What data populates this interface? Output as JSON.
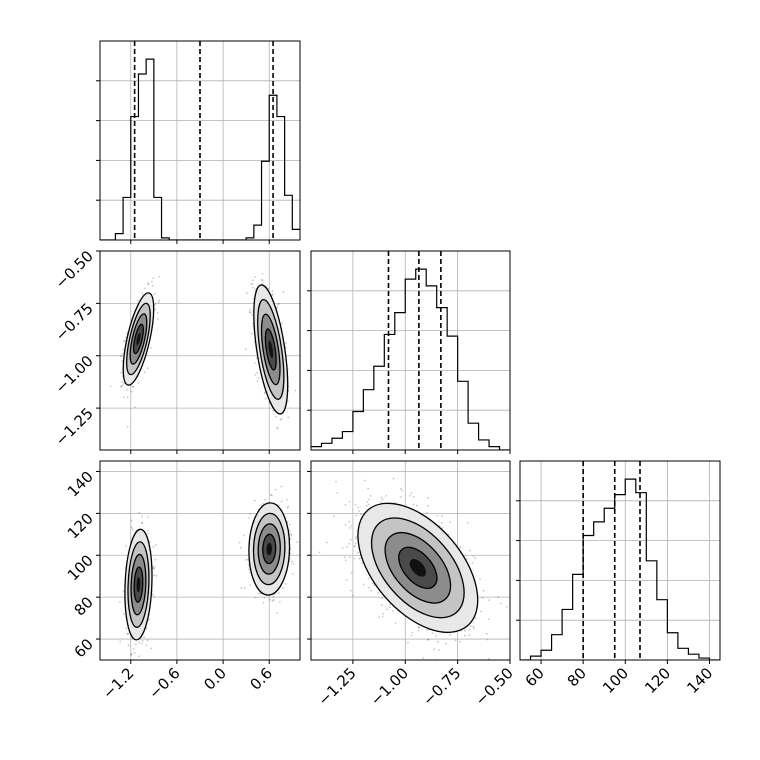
{
  "chart_data": {
    "type": "corner",
    "grid": true,
    "parameters": [
      "",
      "",
      ""
    ],
    "axes": {
      "p0": {
        "range": [
          -1.6,
          1.0
        ],
        "ticks": [
          "-1.2",
          "-0.6",
          "0.0",
          "0.6"
        ],
        "tick_values": [
          -1.2,
          -0.6,
          0.0,
          0.6
        ]
      },
      "p1": {
        "range": [
          -1.45,
          -0.5
        ],
        "ticks": [
          "-1.25",
          "-1.00",
          "-0.75",
          "-0.50"
        ],
        "tick_values": [
          -1.25,
          -1.0,
          -0.75,
          -0.5
        ]
      },
      "p2": {
        "range": [
          50,
          145
        ],
        "ticks": [
          "60",
          "80",
          "100",
          "120",
          "140"
        ],
        "tick_values": [
          60,
          80,
          100,
          120,
          140
        ]
      }
    },
    "histograms": [
      {
        "param": "p0",
        "bin_edges": [
          -1.6,
          -1.5,
          -1.4,
          -1.3,
          -1.2,
          -1.1,
          -1.0,
          -0.9,
          -0.8,
          -0.7,
          -0.6,
          -0.5,
          -0.4,
          -0.3,
          -0.2,
          -0.1,
          0.0,
          0.1,
          0.2,
          0.3,
          0.4,
          0.5,
          0.6,
          0.7,
          0.8,
          0.9,
          1.0
        ],
        "counts": [
          0,
          0,
          3,
          20,
          58,
          78,
          85,
          20,
          1,
          0,
          0,
          0,
          0,
          0,
          0,
          0,
          0,
          0,
          0,
          1,
          7,
          37,
          68,
          58,
          21,
          5
        ],
        "quantiles": [
          -1.15,
          -0.3,
          0.65
        ]
      },
      {
        "param": "p1",
        "bin_edges": [
          -1.45,
          -1.4,
          -1.35,
          -1.3,
          -1.25,
          -1.2,
          -1.15,
          -1.1,
          -1.05,
          -1.0,
          -0.95,
          -0.9,
          -0.85,
          -0.8,
          -0.75,
          -0.7,
          -0.65,
          -0.6,
          -0.55,
          -0.5
        ],
        "counts": [
          2,
          4,
          7,
          11,
          23,
          36,
          50,
          69,
          82,
          102,
          108,
          98,
          85,
          68,
          41,
          16,
          6,
          2,
          0
        ],
        "quantiles": [
          -1.08,
          -0.935,
          -0.83
        ]
      },
      {
        "param": "p2",
        "bin_edges": [
          50,
          55,
          60,
          65,
          70,
          75,
          80,
          85,
          90,
          95,
          100,
          105,
          110,
          115,
          120,
          125,
          130,
          135,
          140,
          145
        ],
        "counts": [
          0,
          2,
          5,
          13,
          26,
          44,
          64,
          71,
          78,
          85,
          93,
          86,
          51,
          31,
          14,
          6,
          3,
          1,
          0
        ],
        "quantiles": [
          80,
          95,
          107
        ]
      }
    ],
    "scatter_panels": [
      {
        "x": "p0",
        "y": "p1",
        "modes": [
          {
            "mean": [
              -1.1,
              -0.92
            ],
            "sd": [
              0.09,
              0.1
            ],
            "rho": 0.65,
            "weight": 0.5
          },
          {
            "mean": [
              0.62,
              -0.97
            ],
            "sd": [
              0.1,
              0.14
            ],
            "rho": -0.55,
            "weight": 0.5
          }
        ]
      },
      {
        "x": "p0",
        "y": "p2",
        "modes": [
          {
            "mean": [
              -1.1,
              86
            ],
            "sd": [
              0.08,
              12
            ],
            "rho": 0.15,
            "weight": 0.5
          },
          {
            "mean": [
              0.6,
              103
            ],
            "sd": [
              0.12,
              10
            ],
            "rho": 0.05,
            "weight": 0.5
          }
        ]
      },
      {
        "x": "p1",
        "y": "p2",
        "modes": [
          {
            "mean": [
              -0.94,
              94
            ],
            "sd": [
              0.13,
              14
            ],
            "rho": -0.5,
            "weight": 1.0
          }
        ]
      }
    ]
  }
}
